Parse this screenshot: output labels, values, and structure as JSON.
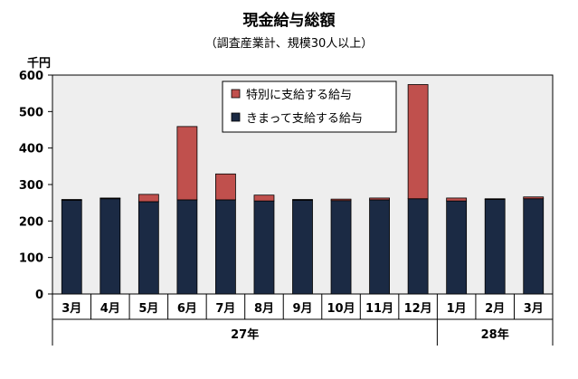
{
  "chart_data": {
    "type": "bar",
    "stacked": true,
    "title": "現金給与総額",
    "subtitle": "（調査産業計、規模30人以上）",
    "unit_label": "千円",
    "categories": [
      "3月",
      "4月",
      "5月",
      "6月",
      "7月",
      "8月",
      "9月",
      "10月",
      "11月",
      "12月",
      "1月",
      "2月",
      "3月"
    ],
    "category_groups": [
      {
        "label": "27年",
        "span": 10
      },
      {
        "label": "28年",
        "span": 3
      }
    ],
    "series": [
      {
        "name": "きまって支給する給与",
        "color": "#1b2a44",
        "values": [
          257,
          261,
          253,
          258,
          258,
          255,
          257,
          256,
          258,
          261,
          255,
          259,
          261
        ]
      },
      {
        "name": "特別に支給する給与",
        "color": "#c0504d",
        "values": [
          2,
          2,
          20,
          201,
          71,
          16,
          2,
          4,
          5,
          313,
          8,
          2,
          5
        ]
      }
    ],
    "ylim": [
      0,
      600
    ],
    "yticks": [
      0,
      100,
      200,
      300,
      400,
      500,
      600
    ],
    "grid": false,
    "legend_position": "top-right",
    "legend_order": [
      "特別に支給する給与",
      "きまって支給する給与"
    ]
  }
}
